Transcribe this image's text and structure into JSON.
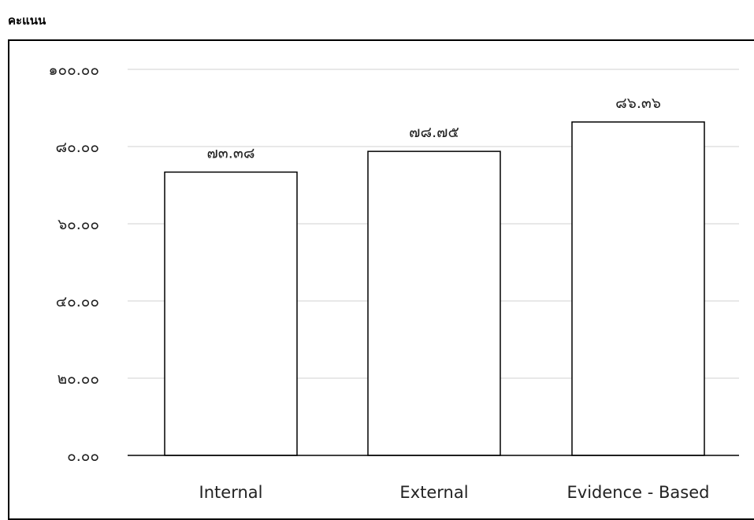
{
  "chart_data": {
    "type": "bar",
    "ylabel": "คะแนน",
    "categories": [
      "Internal",
      "External",
      "Evidence - Based"
    ],
    "values": [
      73.38,
      78.75,
      86.36
    ],
    "data_labels": [
      "๗๓.๓๘",
      "๗๘.๗๕",
      "๘๖.๓๖"
    ],
    "ylim": [
      0,
      100
    ],
    "yticks": [
      {
        "value": 0,
        "label": "๐.๐๐"
      },
      {
        "value": 20,
        "label": "๒๐.๐๐"
      },
      {
        "value": 40,
        "label": "๔๐.๐๐"
      },
      {
        "value": 60,
        "label": "๖๐.๐๐"
      },
      {
        "value": 80,
        "label": "๘๐.๐๐"
      },
      {
        "value": 100,
        "label": "๑๐๐.๐๐"
      }
    ],
    "grid": true,
    "colors": {
      "bar_fill": "#ffffff",
      "bar_stroke": "#000000",
      "grid": "#d9d9d9",
      "axis": "#000000"
    }
  }
}
